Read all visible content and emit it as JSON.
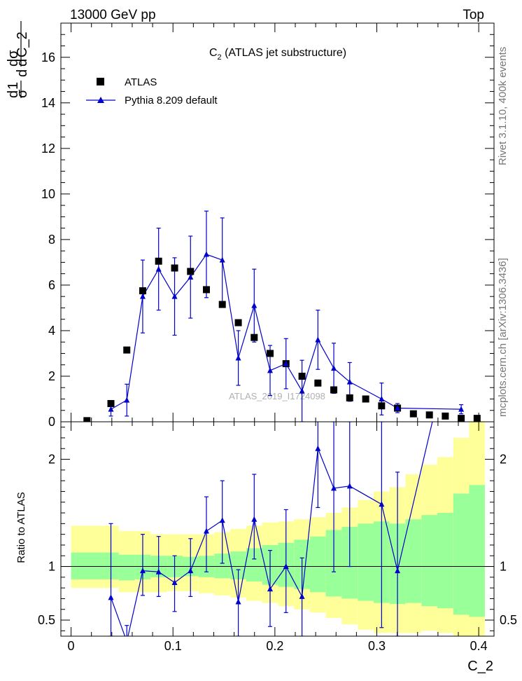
{
  "header": {
    "left": "13000 GeV pp",
    "right": "Top"
  },
  "side_labels": {
    "rivet": "Rivet 3.1.10,  400k events",
    "mcplots": "mcplots.cern.ch [arXiv:1306.3436]"
  },
  "watermark": "ATLAS_2019_I1724098",
  "chart_data": {
    "type": "scatter",
    "title": "C₂ (ATLAS jet substructure)",
    "title_main": "C",
    "title_sub": "2",
    "title_rest": " (ATLAS jet substructure)",
    "ylabel": "1/σ dσ/dC_2",
    "xlabel": "C_2",
    "xlim": [
      -0.01,
      0.415
    ],
    "ylim": [
      0,
      17.5
    ],
    "x_ticks": [
      0,
      0.1,
      0.2,
      0.3,
      0.4
    ],
    "x_tick_labels": [
      "0",
      "0.1",
      "0.2",
      "0.3",
      "0.4"
    ],
    "y_ticks": [
      0,
      2,
      4,
      6,
      8,
      10,
      12,
      14,
      16
    ],
    "y_tick_labels": [
      "0",
      "2",
      "4",
      "6",
      "8",
      "10",
      "12",
      "14",
      "16"
    ],
    "legend": [
      "ATLAS",
      "Pythia 8.209 default"
    ],
    "legend_position": "top-left",
    "series": [
      {
        "name": "ATLAS",
        "marker": "square",
        "color": "#000000",
        "x": [
          0.0156,
          0.0391,
          0.0547,
          0.0703,
          0.0859,
          0.1016,
          0.1172,
          0.1328,
          0.1484,
          0.1641,
          0.1797,
          0.1953,
          0.2109,
          0.2266,
          0.2422,
          0.2578,
          0.2734,
          0.2891,
          0.3047,
          0.3203,
          0.3359,
          0.3516,
          0.3672,
          0.3828,
          0.3984
        ],
        "y": [
          0.05,
          0.8,
          3.15,
          5.75,
          7.05,
          6.75,
          6.6,
          5.8,
          5.15,
          4.35,
          3.7,
          3.0,
          2.55,
          2.0,
          1.7,
          1.4,
          1.05,
          1.0,
          0.7,
          0.6,
          0.35,
          0.3,
          0.25,
          0.15,
          0.15
        ]
      },
      {
        "name": "Pythia 8.209 default",
        "marker": "triangle",
        "color": "#0000cc",
        "x": [
          0.0391,
          0.0547,
          0.0703,
          0.0859,
          0.1016,
          0.1172,
          0.1328,
          0.1484,
          0.1641,
          0.1797,
          0.1953,
          0.2109,
          0.2266,
          0.2422,
          0.2578,
          0.2734,
          0.3047,
          0.3203,
          0.3828
        ],
        "y": [
          0.55,
          0.95,
          5.5,
          6.7,
          5.5,
          6.35,
          7.35,
          7.1,
          2.8,
          5.1,
          2.25,
          2.55,
          1.35,
          3.6,
          2.35,
          1.75,
          1.0,
          0.6,
          0.55
        ],
        "yerr": [
          0.3,
          0.7,
          1.6,
          1.8,
          1.7,
          1.8,
          1.9,
          1.85,
          1.2,
          1.6,
          1.1,
          1.1,
          1.35,
          1.3,
          1.1,
          0.85,
          0.7,
          0.2,
          0.2
        ]
      }
    ],
    "ratio": {
      "ylabel": "Ratio to ATLAS",
      "ylim": [
        0.35,
        2.35
      ],
      "y_ticks": [
        0.5,
        1,
        2
      ],
      "y_tick_labels": [
        "0.5",
        "1",
        "2"
      ],
      "bins": [
        0.0,
        0.0313,
        0.0469,
        0.0625,
        0.0781,
        0.0938,
        0.1094,
        0.125,
        0.1406,
        0.1563,
        0.1719,
        0.1875,
        0.2031,
        0.2188,
        0.2344,
        0.25,
        0.2656,
        0.2813,
        0.2969,
        0.3125,
        0.3281,
        0.3438,
        0.3594,
        0.375,
        0.3906,
        0.406
      ],
      "band_yellow_low": [
        0.8,
        0.8,
        0.76,
        0.76,
        0.76,
        0.77,
        0.77,
        0.75,
        0.73,
        0.71,
        0.68,
        0.66,
        0.63,
        0.6,
        0.57,
        0.52,
        0.46,
        0.41,
        0.38,
        0.38,
        0.38,
        0.4,
        0.38,
        0.35,
        0.35
      ],
      "band_yellow_high": [
        1.38,
        1.38,
        1.33,
        1.33,
        1.3,
        1.3,
        1.3,
        1.3,
        1.32,
        1.35,
        1.38,
        1.41,
        1.42,
        1.44,
        1.46,
        1.5,
        1.55,
        1.62,
        1.7,
        1.74,
        1.86,
        1.95,
        2.02,
        2.2,
        2.35
      ],
      "band_green_low": [
        0.88,
        0.88,
        0.87,
        0.88,
        0.9,
        0.9,
        0.91,
        0.9,
        0.89,
        0.88,
        0.86,
        0.83,
        0.81,
        0.79,
        0.76,
        0.72,
        0.7,
        0.68,
        0.66,
        0.65,
        0.66,
        0.63,
        0.61,
        0.55,
        0.53
      ],
      "band_green_high": [
        1.13,
        1.13,
        1.11,
        1.11,
        1.1,
        1.1,
        1.09,
        1.1,
        1.12,
        1.14,
        1.17,
        1.2,
        1.22,
        1.25,
        1.28,
        1.34,
        1.37,
        1.4,
        1.42,
        1.4,
        1.44,
        1.48,
        1.5,
        1.68,
        1.76
      ],
      "pythia": {
        "x": [
          0.0391,
          0.0547,
          0.0703,
          0.0859,
          0.1016,
          0.1172,
          0.1328,
          0.1484,
          0.1641,
          0.1797,
          0.1953,
          0.2109,
          0.2266,
          0.2422,
          0.2578,
          0.2734,
          0.3047,
          0.3203,
          0.3828
        ],
        "y": [
          0.71,
          0.3,
          0.96,
          0.95,
          0.85,
          0.96,
          1.33,
          1.43,
          0.67,
          1.44,
          0.79,
          1.0,
          0.72,
          2.1,
          1.73,
          1.75,
          1.58,
          0.96,
          3.5
        ],
        "ylo": [
          0.35,
          0.15,
          0.73,
          0.72,
          0.58,
          0.72,
          0.95,
          1.03,
          0.35,
          1.07,
          0.44,
          0.57,
          0.35,
          1.55,
          0.95,
          1.0,
          0.43,
          0.35,
          3.2
        ],
        "yhi": [
          1.4,
          0.45,
          1.3,
          1.28,
          1.1,
          1.26,
          1.65,
          1.8,
          0.97,
          1.86,
          1.15,
          1.53,
          1.08,
          2.5,
          2.35,
          2.35,
          2.35,
          1.88,
          3.8
        ]
      }
    }
  }
}
